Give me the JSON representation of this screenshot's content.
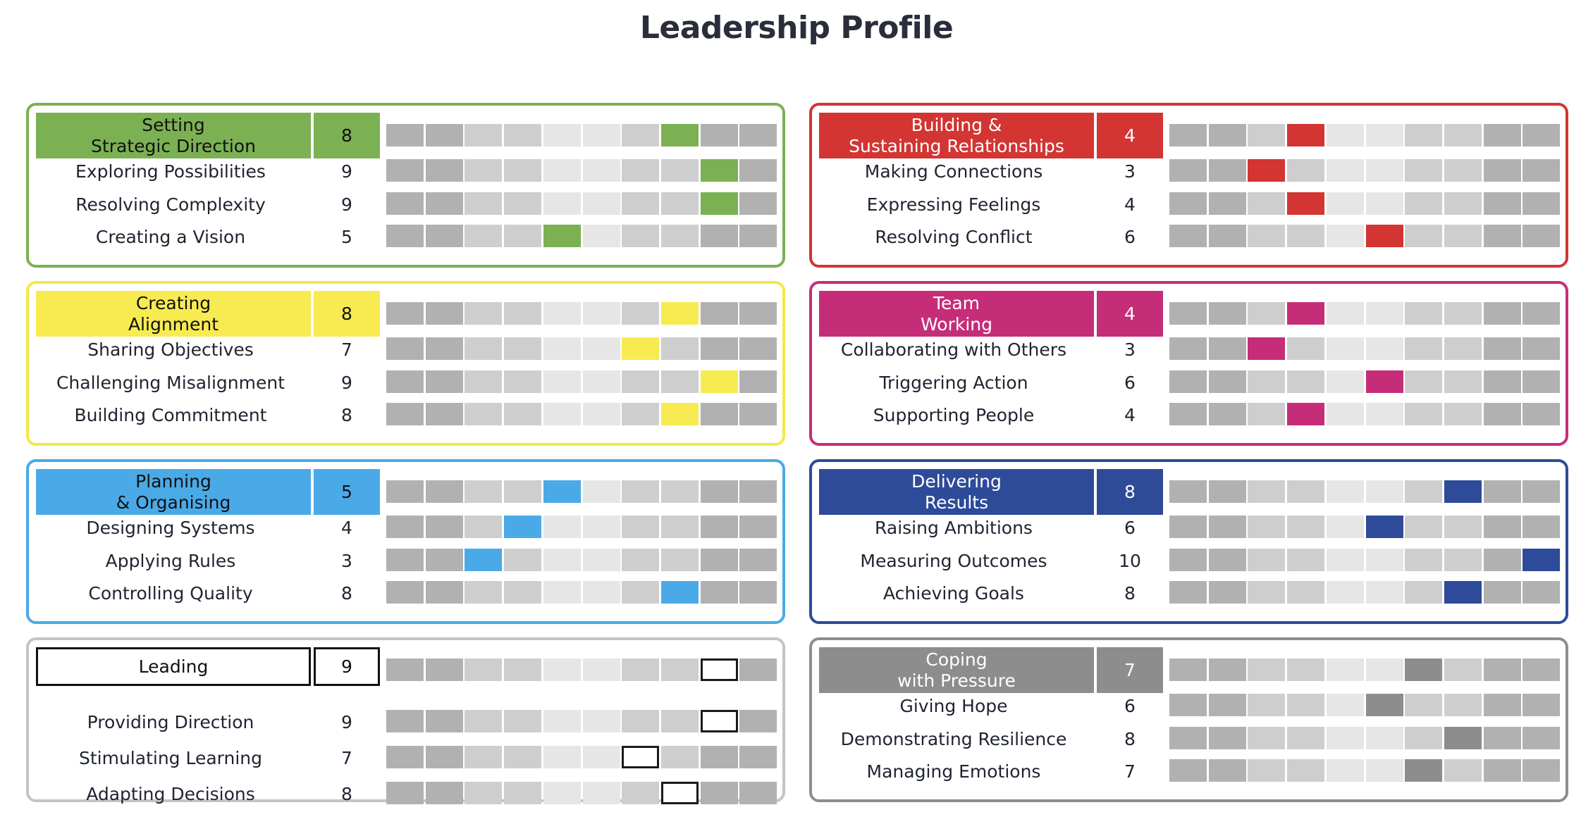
{
  "title": "Leadership Profile",
  "chart_data": {
    "type": "table",
    "scale": [
      1,
      10
    ],
    "panels": [
      {
        "label": "Setting\nStrategic Direction",
        "score": 8,
        "color": "#7cb153",
        "text_color": "#111111",
        "outline": false,
        "rows": [
          {
            "label": "Exploring Possibilities",
            "score": 9
          },
          {
            "label": "Resolving Complexity",
            "score": 9
          },
          {
            "label": "Creating a Vision",
            "score": 5
          }
        ]
      },
      {
        "label": "Building &\nSustaining Relationships",
        "score": 4,
        "color": "#d23532",
        "text_color": "#ffffff",
        "outline": false,
        "rows": [
          {
            "label": "Making Connections",
            "score": 3
          },
          {
            "label": "Expressing Feelings",
            "score": 4
          },
          {
            "label": "Resolving Conflict",
            "score": 6
          }
        ]
      },
      {
        "label": "Creating\nAlignment",
        "score": 8,
        "color": "#f7eb51",
        "text_color": "#111111",
        "outline": false,
        "rows": [
          {
            "label": "Sharing Objectives",
            "score": 7
          },
          {
            "label": "Challenging Misalignment",
            "score": 9
          },
          {
            "label": "Building Commitment",
            "score": 8
          }
        ]
      },
      {
        "label": "Team\nWorking",
        "score": 4,
        "color": "#c52d79",
        "text_color": "#ffffff",
        "outline": false,
        "rows": [
          {
            "label": "Collaborating with Others",
            "score": 3
          },
          {
            "label": "Triggering Action",
            "score": 6
          },
          {
            "label": "Supporting People",
            "score": 4
          }
        ]
      },
      {
        "label": "Planning\n& Organising",
        "score": 5,
        "color": "#4aaae7",
        "text_color": "#111111",
        "outline": false,
        "rows": [
          {
            "label": "Designing Systems",
            "score": 4
          },
          {
            "label": "Applying Rules",
            "score": 3
          },
          {
            "label": "Controlling Quality",
            "score": 8
          }
        ]
      },
      {
        "label": "Delivering\nResults",
        "score": 8,
        "color": "#2d4b98",
        "text_color": "#ffffff",
        "outline": false,
        "rows": [
          {
            "label": "Raising Ambitions",
            "score": 6
          },
          {
            "label": "Measuring Outcomes",
            "score": 10
          },
          {
            "label": "Achieving Goals",
            "score": 8
          }
        ]
      },
      {
        "label": "Leading",
        "score": 9,
        "color": "#ffffff",
        "text_color": "#111111",
        "outline": true,
        "rows": [
          {
            "label": "Providing Direction",
            "score": 9
          },
          {
            "label": "Stimulating Learning",
            "score": 7
          },
          {
            "label": "Adapting Decisions",
            "score": 8
          }
        ]
      },
      {
        "label": "Coping\nwith Pressure",
        "score": 7,
        "color": "#8d8d8d",
        "text_color": "#ffffff",
        "outline": false,
        "rows": [
          {
            "label": "Giving Hope",
            "score": 6
          },
          {
            "label": "Demonstrating Resilience",
            "score": 8
          },
          {
            "label": "Managing Emotions",
            "score": 7
          }
        ]
      }
    ]
  }
}
